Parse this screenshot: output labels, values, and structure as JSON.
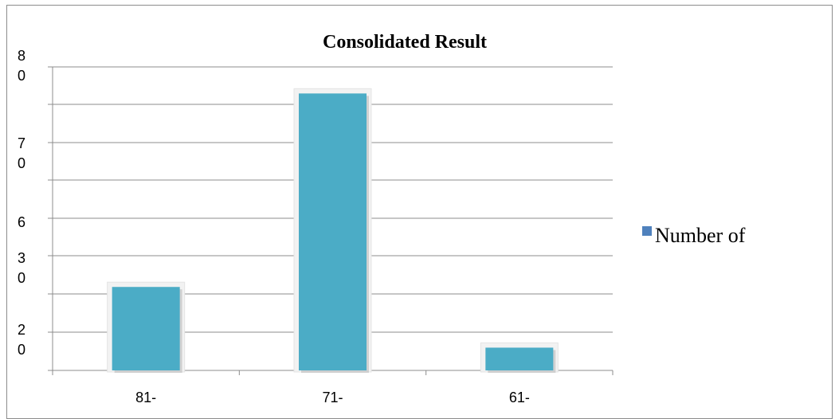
{
  "chart_data": {
    "type": "bar",
    "title": "Consolidated Result",
    "categories": [
      "81-",
      "71-",
      "61-"
    ],
    "series": [
      {
        "name": "Number of",
        "values": [
          22,
          73,
          6
        ]
      }
    ],
    "y_tick_labels": [
      {
        "lines": [
          "8",
          "0"
        ]
      },
      {
        "lines": [
          "7",
          "0"
        ]
      },
      {
        "lines": [
          "6"
        ]
      },
      {
        "lines": [
          "3",
          "0"
        ]
      },
      {
        "lines": [
          "2",
          "0"
        ]
      }
    ],
    "ylim": [
      0,
      80
    ],
    "grid": true,
    "legend_position": "right",
    "colors": {
      "bar": "#4bacc6",
      "legend_marker": "#4f81bd",
      "grid": "#8c8c8c"
    }
  }
}
